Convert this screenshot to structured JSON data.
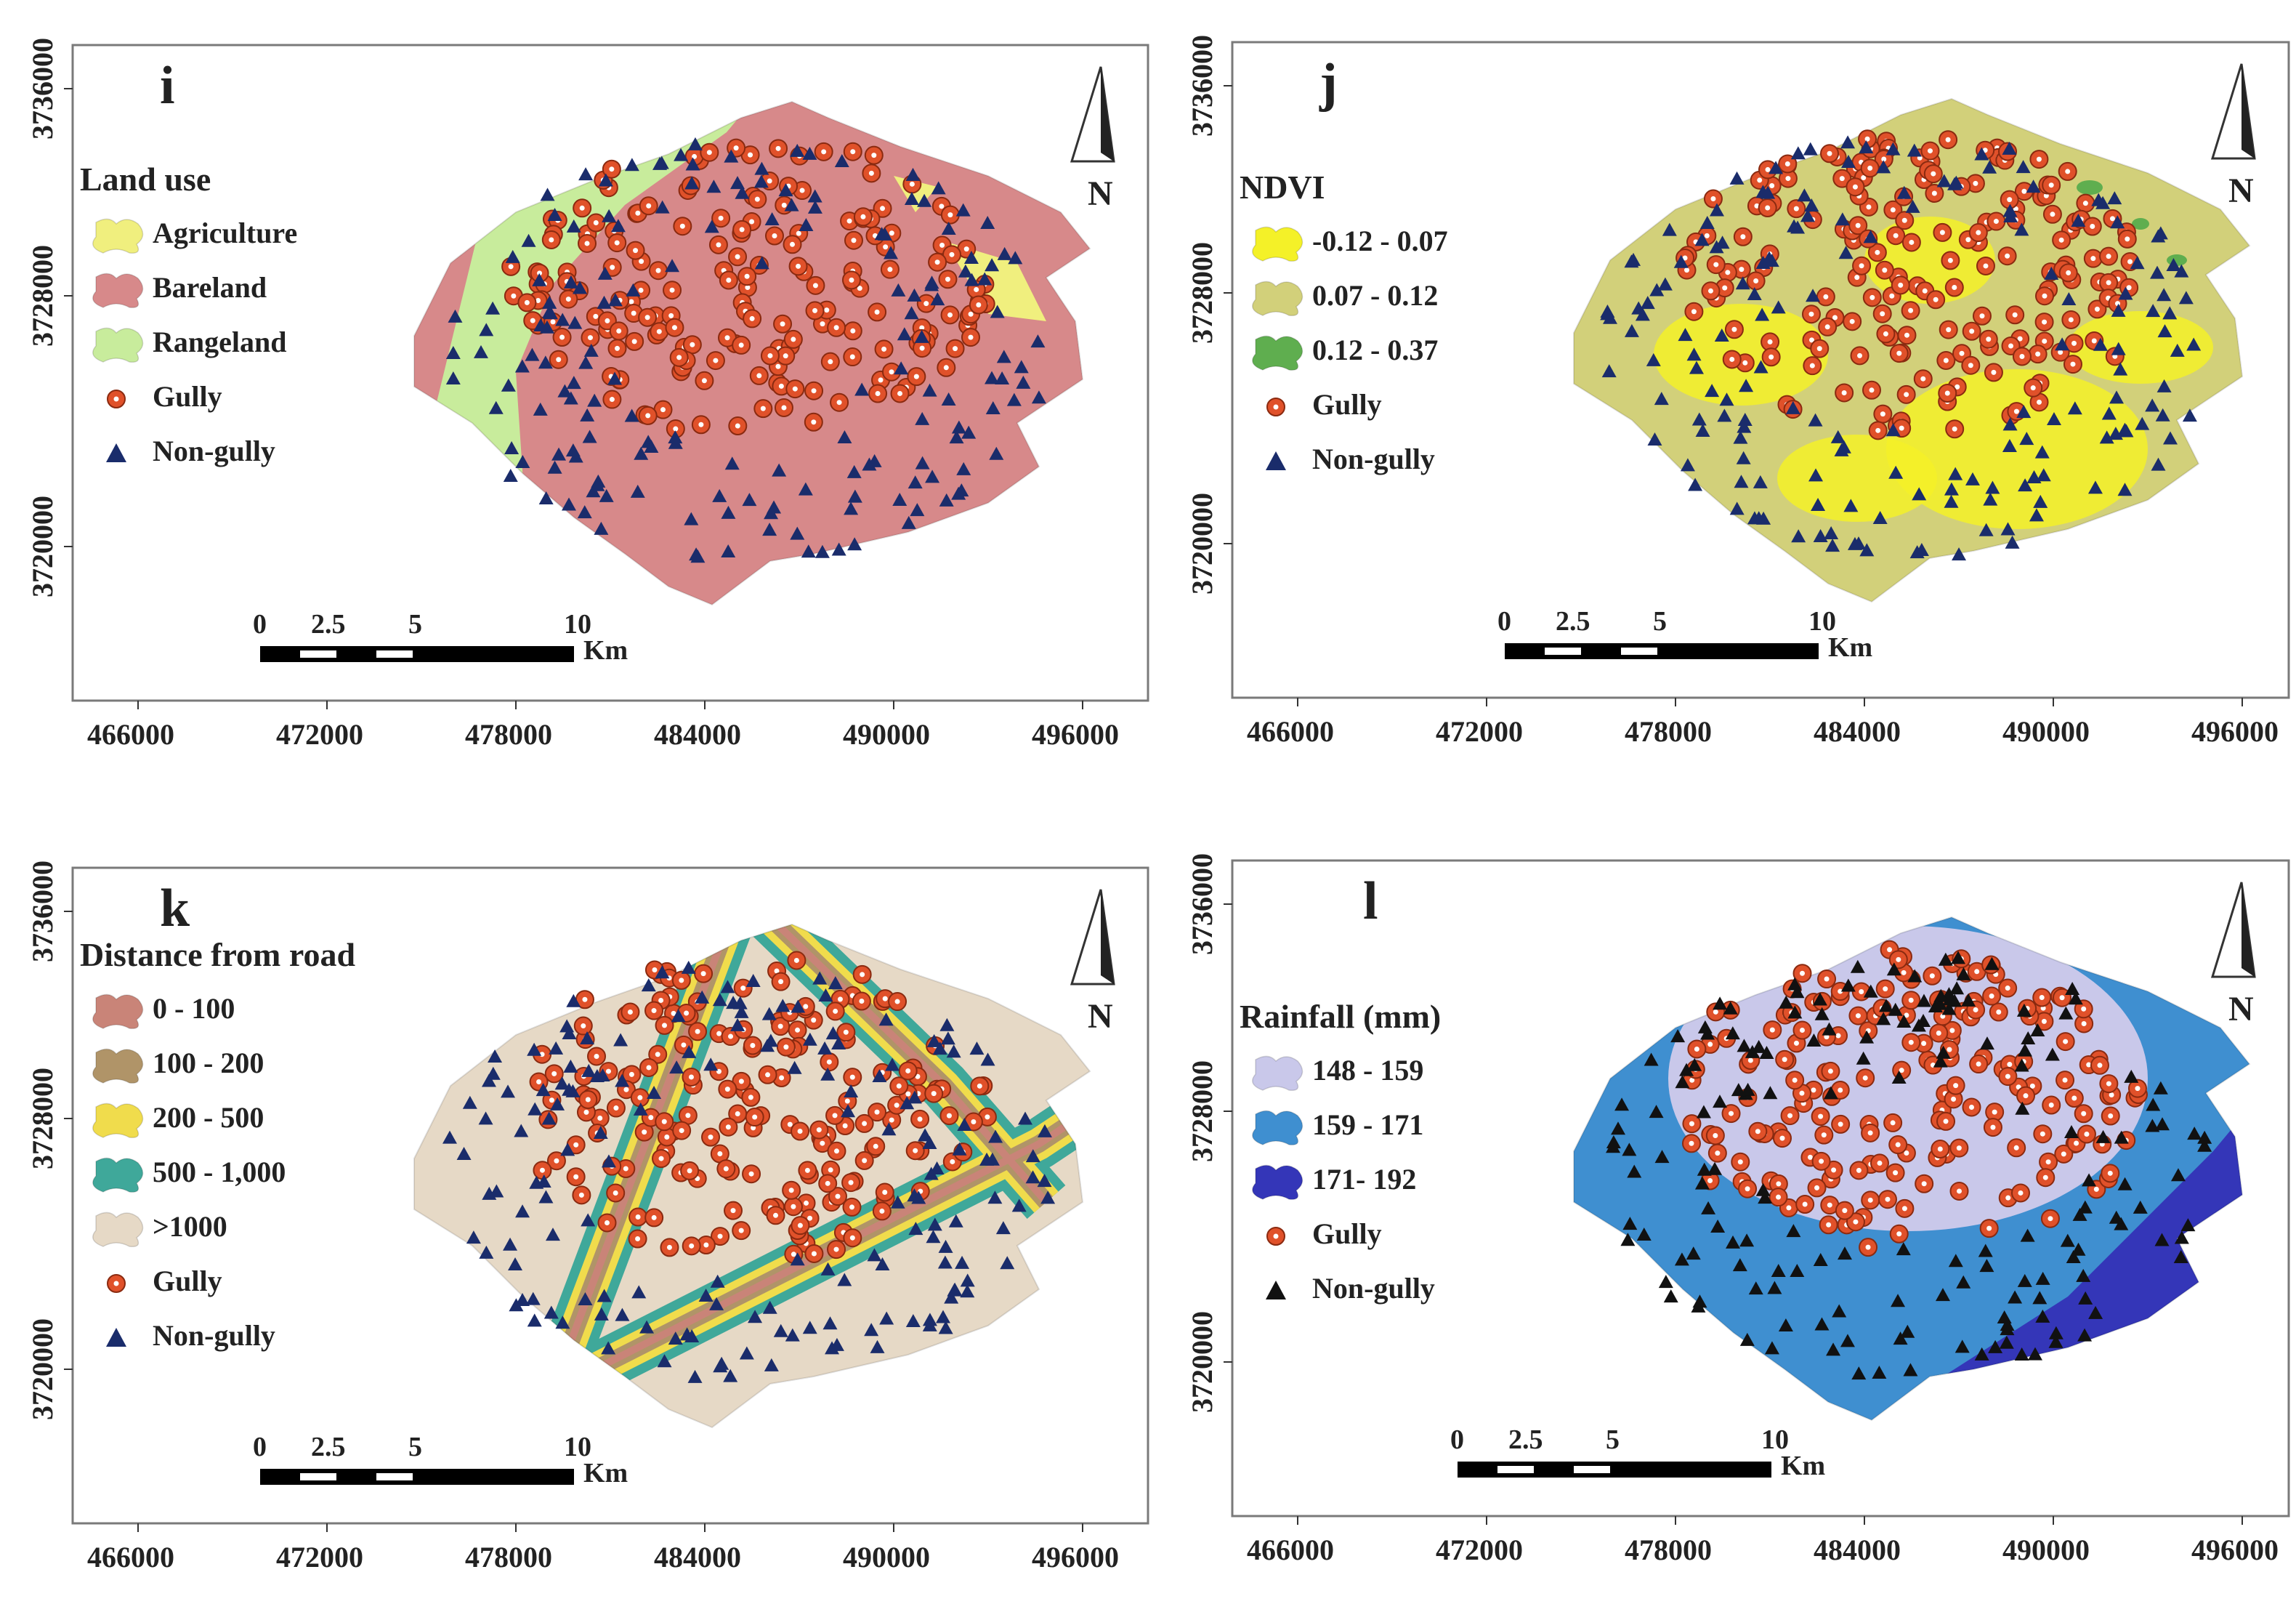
{
  "figure": {
    "panels": [
      {
        "letter": "i",
        "legend_title": "Land use",
        "legend_items": [
          {
            "label": "Agriculture",
            "kind": "class",
            "color": "#f0ef7e"
          },
          {
            "label": "Bareland",
            "kind": "class",
            "color": "#d7898a"
          },
          {
            "label": "Rangeland",
            "kind": "class",
            "color": "#c8ec9c"
          },
          {
            "label": "Gully",
            "kind": "gully"
          },
          {
            "label": "Non-gully",
            "kind": "nongully",
            "color": "#1a2c6b"
          }
        ],
        "x_ticks": [
          "466000",
          "472000",
          "478000",
          "484000",
          "490000",
          "496000"
        ],
        "y_ticks": [
          "3736000",
          "3728000",
          "3720000"
        ],
        "scale_labels": [
          "0",
          "2.5",
          "5",
          "10"
        ],
        "scale_unit": "Km",
        "north": "N"
      },
      {
        "letter": "j",
        "legend_title": "NDVI",
        "legend_items": [
          {
            "label": "-0.12 - 0.07",
            "kind": "class",
            "color": "#f4f128"
          },
          {
            "label": "0.07 - 0.12",
            "kind": "class",
            "color": "#d2d07a"
          },
          {
            "label": "0.12 - 0.37",
            "kind": "class",
            "color": "#5fae4f"
          },
          {
            "label": "Gully",
            "kind": "gully"
          },
          {
            "label": "Non-gully",
            "kind": "nongully",
            "color": "#1a2c6b"
          }
        ],
        "x_ticks": [
          "466000",
          "472000",
          "478000",
          "484000",
          "490000",
          "496000"
        ],
        "y_ticks": [
          "3736000",
          "3728000",
          "3720000"
        ],
        "scale_labels": [
          "0",
          "2.5",
          "5",
          "10"
        ],
        "scale_unit": "Km",
        "north": "N"
      },
      {
        "letter": "k",
        "legend_title": "Distance from road",
        "legend_items": [
          {
            "label": "0 - 100",
            "kind": "class",
            "color": "#c98478"
          },
          {
            "label": "100 - 200",
            "kind": "class",
            "color": "#b09468"
          },
          {
            "label": "200 - 500",
            "kind": "class",
            "color": "#f0dc4c"
          },
          {
            "label": "500 - 1,000",
            "kind": "class",
            "color": "#3fa89a"
          },
          {
            "label": ">1000",
            "kind": "class",
            "color": "#e6d9c6"
          },
          {
            "label": "Gully",
            "kind": "gully"
          },
          {
            "label": "Non-gully",
            "kind": "nongully",
            "color": "#1a2c6b"
          }
        ],
        "x_ticks": [
          "466000",
          "472000",
          "478000",
          "484000",
          "490000",
          "496000"
        ],
        "y_ticks": [
          "3736000",
          "3728000",
          "3720000"
        ],
        "scale_labels": [
          "0",
          "2.5",
          "5",
          "10"
        ],
        "scale_unit": "Km",
        "north": "N"
      },
      {
        "letter": "l",
        "legend_title": "Rainfall (mm)",
        "legend_items": [
          {
            "label": "148 - 159",
            "kind": "class",
            "color": "#c9c8ea"
          },
          {
            "label": "159 - 171",
            "kind": "class",
            "color": "#3f8fd0"
          },
          {
            "label": "171- 192",
            "kind": "class",
            "color": "#3436b8"
          },
          {
            "label": "Gully",
            "kind": "gully"
          },
          {
            "label": "Non-gully",
            "kind": "nongully",
            "color": "#111111"
          }
        ],
        "x_ticks": [
          "466000",
          "472000",
          "478000",
          "484000",
          "490000",
          "496000"
        ],
        "y_ticks": [
          "3736000",
          "3728000",
          "3720000"
        ],
        "scale_labels": [
          "0",
          "2.5",
          "5",
          "10"
        ],
        "scale_unit": "Km",
        "north": "N"
      }
    ]
  },
  "colors": {
    "gully_fill": "#e0512a",
    "gully_edge": "#8a2a10",
    "frame": "#7a7a7a"
  }
}
